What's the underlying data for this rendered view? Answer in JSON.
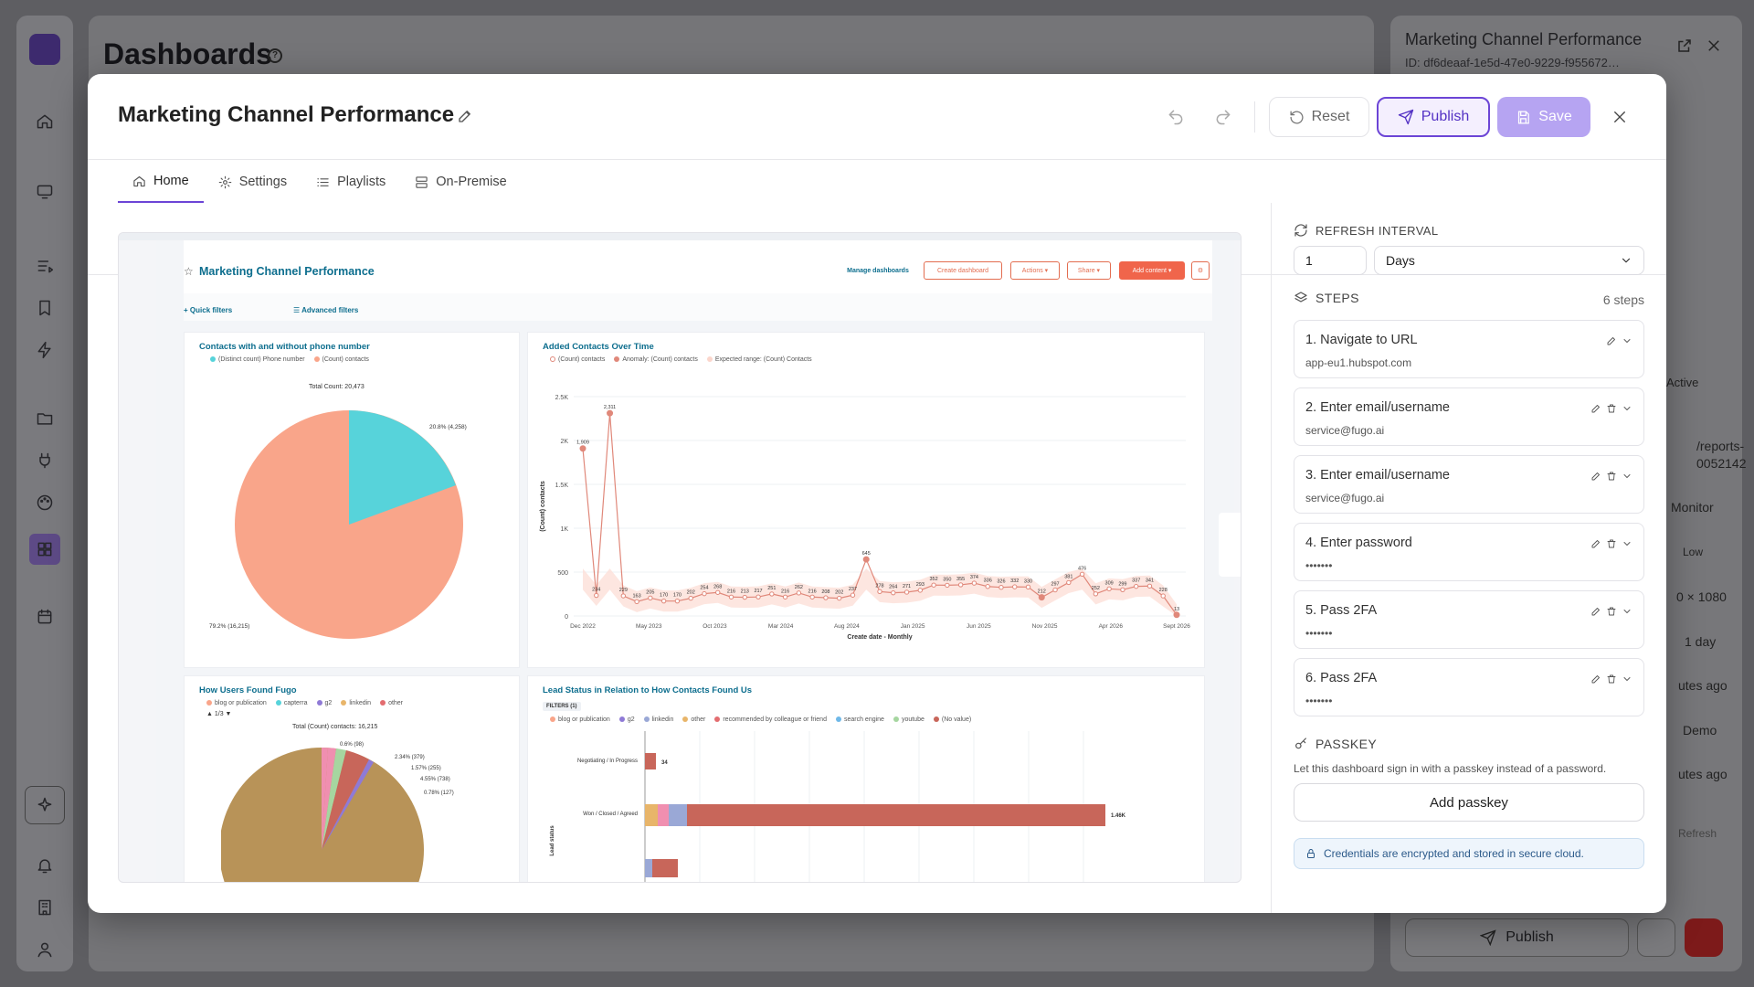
{
  "background": {
    "page_title": "Dashboards",
    "help_icon": "?",
    "panel": {
      "title": "Marketing Channel Performance",
      "id": "ID: df6deaaf-1e5d-47e0-9229-f955672…",
      "status": "Active",
      "url_fragment_1": "/reports-",
      "url_fragment_2": "0052142",
      "label_monitor": "Monitor",
      "label_priority": "Low",
      "label_resolution": "0 × 1080",
      "label_interval": "1 day",
      "label_ago_1": "utes ago",
      "label_demo": "Demo",
      "label_ago_2": "utes ago",
      "label_refresh": "Refresh",
      "publish_label": "Publish"
    }
  },
  "modal": {
    "title": "Marketing Channel Performance",
    "toolbar": {
      "reset_label": "Reset",
      "publish_label": "Publish",
      "save_label": "Save"
    },
    "tabs": [
      {
        "label": "Home",
        "icon": "home-icon",
        "active": true
      },
      {
        "label": "Settings",
        "icon": "gear-icon",
        "active": false
      },
      {
        "label": "Playlists",
        "icon": "list-icon",
        "active": false
      },
      {
        "label": "On-Premise",
        "icon": "server-icon",
        "active": false
      }
    ],
    "refresh": {
      "heading": "REFRESH INTERVAL",
      "value": "1",
      "unit": "Days"
    },
    "steps": {
      "heading": "STEPS",
      "count": "6 steps",
      "items": [
        {
          "name": "1. Navigate to URL",
          "value": "app-eu1.hubspot.com"
        },
        {
          "name": "2. Enter email/username",
          "value": "service@fugo.ai"
        },
        {
          "name": "3. Enter email/username",
          "value": "service@fugo.ai"
        },
        {
          "name": "4. Enter password",
          "value": "•••••••"
        },
        {
          "name": "5. Pass 2FA",
          "value": "•••••••"
        },
        {
          "name": "6. Pass 2FA",
          "value": "•••••••"
        }
      ]
    },
    "passkey": {
      "heading": "PASSKEY",
      "description": "Let this dashboard sign in with a passkey instead of a password.",
      "button": "Add passkey",
      "note": "Credentials are encrypted and stored in secure cloud."
    }
  },
  "preview": {
    "dashboard_title": "Marketing Channel Performance",
    "buttons": [
      "Manage dashboards",
      "Create dashboard",
      "Actions ▾",
      "Share ▾",
      "Add content ▾"
    ],
    "quick_filters": "Quick filters",
    "advanced_filters": "Advanced filters",
    "cards": {
      "phone": {
        "title": "Contacts with and without phone number",
        "legend": [
          "(Distinct count) Phone number",
          "(Count) contacts"
        ],
        "total": "Total Count: 20,473",
        "label_a": "20.8% (4,258)",
        "label_b": "79.2% (16,215)"
      },
      "contacts_time": {
        "title": "Added Contacts Over Time",
        "legend": [
          "(Count) contacts",
          "Anomaly: (Count) contacts",
          "Expected range: (Count) Contacts"
        ],
        "ylabel": "(Count) contacts",
        "xlabel": "Create date - Monthly",
        "y_ticks": [
          "2.5K",
          "2K",
          "1.5K",
          "1K",
          "500",
          "0"
        ],
        "x_ticks": [
          "Dec 2022",
          "May 2023",
          "Oct 2023",
          "Mar 2024",
          "Aug 2024",
          "Jan 2025",
          "Jun 2025",
          "Nov 2025",
          "Apr 2026",
          "Sept 2026"
        ],
        "values": [
          1909,
          234,
          2311,
          229,
          163,
          205,
          170,
          170,
          202,
          254,
          268,
          216,
          213,
          217,
          251,
          216,
          262,
          216,
          208,
          202,
          237,
          645,
          278,
          264,
          271,
          293,
          352,
          350,
          355,
          374,
          336,
          326,
          332,
          330,
          212,
          297,
          381,
          476,
          252,
          309,
          299,
          337,
          341,
          228,
          13
        ]
      },
      "found": {
        "title": "How Users Found Fugo",
        "legend": [
          "blog or publication",
          "capterra",
          "g2",
          "linkedin",
          "other"
        ],
        "pager": "1/3",
        "total": "Total (Count) contacts: 16,215",
        "labels": [
          "0.6% (98)",
          "2.34% (379)",
          "1.57% (255)",
          "4.55% (738)",
          "0.78% (127)"
        ]
      },
      "lead": {
        "title": "Lead Status in Relation to How Contacts Found Us",
        "filters": "FILTERS (1)",
        "legend": [
          "blog or publication",
          "g2",
          "linkedin",
          "other",
          "recommended by colleague or friend",
          "search engine",
          "youtube",
          "(No value)"
        ],
        "rows": [
          {
            "label": "Negotiating / In Progress",
            "value": "34"
          },
          {
            "label": "Won / Closed / Agreed",
            "value": "1.46K"
          }
        ],
        "ylabel": "Lead status"
      }
    }
  },
  "colors": {
    "accent": "#6c45d6",
    "hubspot_teal": "#0d6e8e",
    "pie_salmon": "#f9a58a",
    "pie_cyan": "#57d3da",
    "line_red": "#e0887a",
    "bar_red": "#c8665a"
  }
}
